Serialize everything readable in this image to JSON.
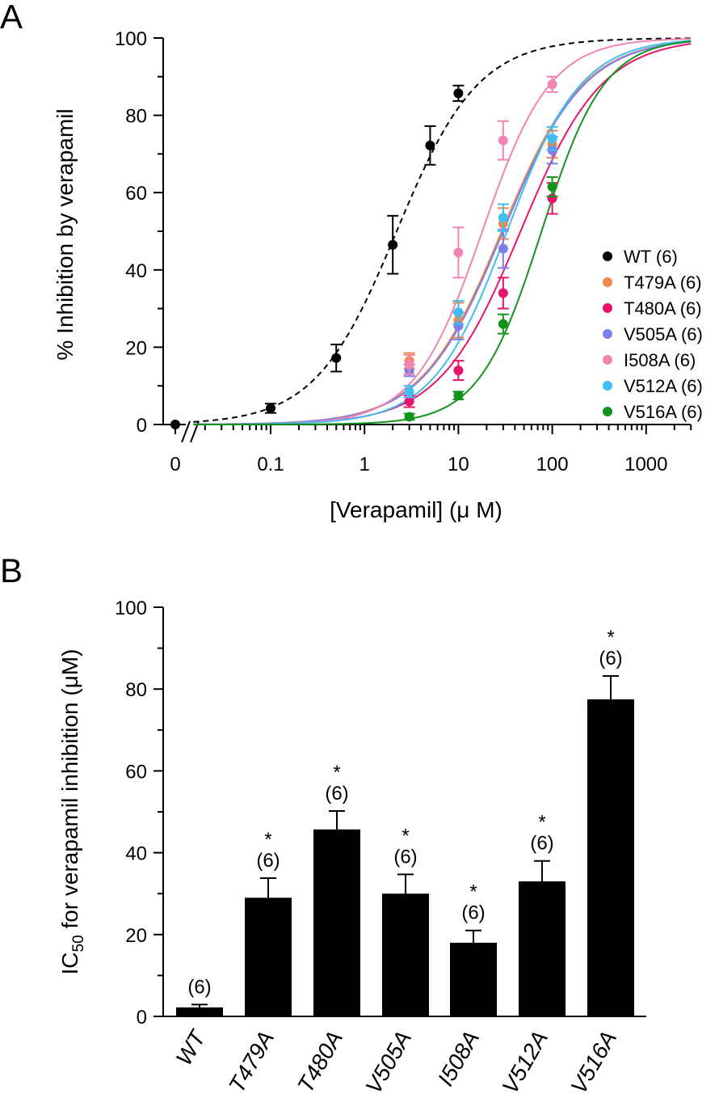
{
  "chart_data": [
    {
      "panel": "A",
      "type": "scatter",
      "xlabel": "[Verapamil] (μ M)",
      "ylabel": "% Inhibition by verapamil",
      "x_scale": "log with broken axis at 0",
      "xlim": [
        0.015,
        3000
      ],
      "ylim": [
        0,
        100
      ],
      "x_tick_labels": [
        "0",
        "0.1",
        "1",
        "10",
        "100",
        "1000"
      ],
      "y_tick_labels": [
        "0",
        "20",
        "40",
        "60",
        "80",
        "100"
      ],
      "legend_position": "right",
      "series": [
        {
          "name": "WT (6)",
          "color": "#000000",
          "line": "dashed",
          "ic50": 2.2,
          "hill": 1.0,
          "x": [
            0,
            0.1,
            0.5,
            2,
            5,
            10
          ],
          "y": [
            0,
            4.2,
            17.2,
            46.5,
            72.2,
            85.7
          ],
          "err": [
            0,
            1.2,
            3.5,
            7.5,
            5.0,
            2.0
          ]
        },
        {
          "name": "T479A (6)",
          "color": "#F08848",
          "line": "solid",
          "ic50": 29,
          "hill": 1.0,
          "x": [
            3,
            10,
            30,
            100
          ],
          "y": [
            16.5,
            27.0,
            52.0,
            72.5
          ],
          "err": [
            2.0,
            4.5,
            4.0,
            3.5
          ]
        },
        {
          "name": "T480A (6)",
          "color": "#E8146C",
          "line": "solid",
          "ic50": 46,
          "hill": 1.0,
          "x": [
            3,
            10,
            30,
            100
          ],
          "y": [
            6.0,
            14.0,
            34.0,
            58.5
          ],
          "err": [
            1.5,
            2.5,
            4.0,
            4.0
          ]
        },
        {
          "name": "V505A (6)",
          "color": "#7B80E8",
          "line": "solid",
          "ic50": 30,
          "hill": 1.0,
          "x": [
            3,
            10,
            30,
            100
          ],
          "y": [
            14.0,
            25.5,
            45.5,
            71.0
          ],
          "err": [
            1.5,
            3.5,
            5.0,
            3.5
          ]
        },
        {
          "name": "I508A (6)",
          "color": "#F184B4",
          "line": "solid",
          "ic50": 18,
          "hill": 1.2,
          "x": [
            3,
            10,
            30,
            100
          ],
          "y": [
            15.5,
            44.5,
            73.5,
            88.0
          ],
          "err": [
            2.5,
            6.5,
            5.0,
            2.0
          ]
        },
        {
          "name": "V512A (6)",
          "color": "#42BDF0",
          "line": "solid",
          "ic50": 33,
          "hill": 1.1,
          "x": [
            3,
            10,
            30,
            100
          ],
          "y": [
            8.5,
            29.0,
            53.5,
            74.0
          ],
          "err": [
            1.5,
            3.0,
            3.5,
            3.0
          ]
        },
        {
          "name": "V516A (6)",
          "color": "#12941C",
          "line": "solid",
          "ic50": 77,
          "hill": 1.3,
          "x": [
            3,
            10,
            30,
            100
          ],
          "y": [
            2.0,
            7.5,
            26.0,
            61.5
          ],
          "err": [
            0.8,
            1.0,
            2.5,
            2.5
          ]
        }
      ]
    },
    {
      "panel": "B",
      "type": "bar",
      "ylabel": {
        "ic": "IC",
        "sub": "50",
        "rest": " for verapamil inhibition (μM)"
      },
      "ylim": [
        0,
        100
      ],
      "y_tick_labels": [
        "0",
        "20",
        "40",
        "60",
        "80",
        "100"
      ],
      "categories": [
        "WT",
        "T479A",
        "T480A",
        "V505A",
        "I508A",
        "V512A",
        "V516A"
      ],
      "values": [
        2.2,
        29.0,
        45.7,
        30.0,
        18.0,
        33.0,
        77.5
      ],
      "err": [
        0.7,
        4.8,
        4.5,
        4.7,
        3.0,
        5.0,
        5.7
      ],
      "n_labels": [
        "(6)",
        "(6)",
        "(6)",
        "(6)",
        "(6)",
        "(6)",
        "(6)"
      ],
      "significance": [
        "",
        "*",
        "*",
        "*",
        "*",
        "*",
        "*"
      ],
      "bar_color": "#000000"
    }
  ],
  "panel_labels": {
    "a": "A",
    "b": "B"
  }
}
